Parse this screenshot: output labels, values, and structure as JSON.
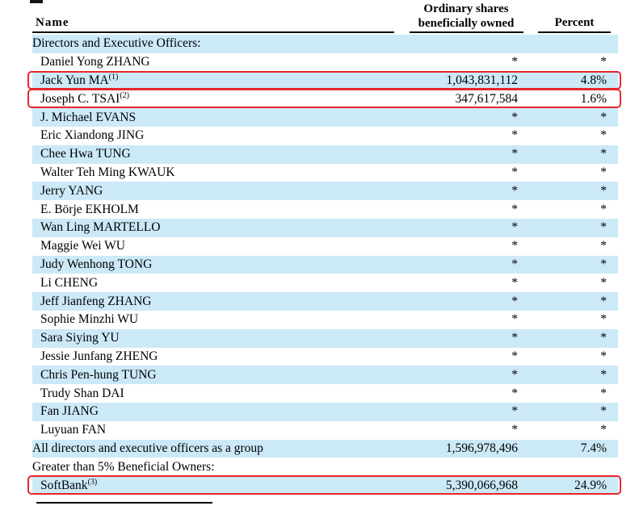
{
  "colors": {
    "row_highlight": "#cce9f8",
    "annotation_red": "#e8262b",
    "text": "#000000"
  },
  "header": {
    "name_label": "Name",
    "shares_label_line1": "Ordinary shares",
    "shares_label_line2": "beneficially owned",
    "percent_label": "Percent"
  },
  "rows": [
    {
      "label": "Directors and Executive Officers:",
      "sup": "",
      "shares": "",
      "percent": "",
      "indent": false,
      "shaded": true,
      "redbox": false
    },
    {
      "label": "Daniel Yong ZHANG",
      "sup": "",
      "shares": "*",
      "percent": "*",
      "indent": true,
      "shaded": false,
      "redbox": false
    },
    {
      "label": "Jack Yun MA",
      "sup": "(1)",
      "shares": "1,043,831,112",
      "percent": "4.8%",
      "indent": true,
      "shaded": true,
      "redbox": true
    },
    {
      "label": "Joseph C. TSAI",
      "sup": "(2)",
      "shares": "347,617,584",
      "percent": "1.6%",
      "indent": true,
      "shaded": false,
      "redbox": true
    },
    {
      "label": "J. Michael EVANS",
      "sup": "",
      "shares": "*",
      "percent": "*",
      "indent": true,
      "shaded": true,
      "redbox": false
    },
    {
      "label": "Eric Xiandong JING",
      "sup": "",
      "shares": "*",
      "percent": "*",
      "indent": true,
      "shaded": false,
      "redbox": false
    },
    {
      "label": "Chee Hwa TUNG",
      "sup": "",
      "shares": "*",
      "percent": "*",
      "indent": true,
      "shaded": true,
      "redbox": false
    },
    {
      "label": "Walter Teh Ming KWAUK",
      "sup": "",
      "shares": "*",
      "percent": "*",
      "indent": true,
      "shaded": false,
      "redbox": false
    },
    {
      "label": "Jerry YANG",
      "sup": "",
      "shares": "*",
      "percent": "*",
      "indent": true,
      "shaded": true,
      "redbox": false
    },
    {
      "label": "E. Börje EKHOLM",
      "sup": "",
      "shares": "*",
      "percent": "*",
      "indent": true,
      "shaded": false,
      "redbox": false
    },
    {
      "label": "Wan Ling MARTELLO",
      "sup": "",
      "shares": "*",
      "percent": "*",
      "indent": true,
      "shaded": true,
      "redbox": false
    },
    {
      "label": "Maggie Wei WU",
      "sup": "",
      "shares": "*",
      "percent": "*",
      "indent": true,
      "shaded": false,
      "redbox": false
    },
    {
      "label": "Judy Wenhong TONG",
      "sup": "",
      "shares": "*",
      "percent": "*",
      "indent": true,
      "shaded": true,
      "redbox": false
    },
    {
      "label": "Li CHENG",
      "sup": "",
      "shares": "*",
      "percent": "*",
      "indent": true,
      "shaded": false,
      "redbox": false
    },
    {
      "label": "Jeff Jianfeng ZHANG",
      "sup": "",
      "shares": "*",
      "percent": "*",
      "indent": true,
      "shaded": true,
      "redbox": false
    },
    {
      "label": "Sophie Minzhi WU",
      "sup": "",
      "shares": "*",
      "percent": "*",
      "indent": true,
      "shaded": false,
      "redbox": false
    },
    {
      "label": "Sara Siying YU",
      "sup": "",
      "shares": "*",
      "percent": "*",
      "indent": true,
      "shaded": true,
      "redbox": false
    },
    {
      "label": "Jessie Junfang ZHENG",
      "sup": "",
      "shares": "*",
      "percent": "*",
      "indent": true,
      "shaded": false,
      "redbox": false
    },
    {
      "label": "Chris Pen-hung TUNG",
      "sup": "",
      "shares": "*",
      "percent": "*",
      "indent": true,
      "shaded": true,
      "redbox": false
    },
    {
      "label": "Trudy Shan DAI",
      "sup": "",
      "shares": "*",
      "percent": "*",
      "indent": true,
      "shaded": false,
      "redbox": false
    },
    {
      "label": "Fan JIANG",
      "sup": "",
      "shares": "*",
      "percent": "*",
      "indent": true,
      "shaded": true,
      "redbox": false
    },
    {
      "label": "Luyuan FAN",
      "sup": "",
      "shares": "*",
      "percent": "*",
      "indent": true,
      "shaded": false,
      "redbox": false
    },
    {
      "label": "All directors and executive officers as a group",
      "sup": "",
      "shares": "1,596,978,496",
      "percent": "7.4%",
      "indent": false,
      "shaded": true,
      "redbox": false
    },
    {
      "label": "Greater than 5% Beneficial Owners:",
      "sup": "",
      "shares": "",
      "percent": "",
      "indent": false,
      "shaded": false,
      "redbox": false
    },
    {
      "label": "SoftBank",
      "sup": "(3)",
      "shares": "5,390,066,968",
      "percent": "24.9%",
      "indent": true,
      "shaded": true,
      "redbox": true
    }
  ]
}
